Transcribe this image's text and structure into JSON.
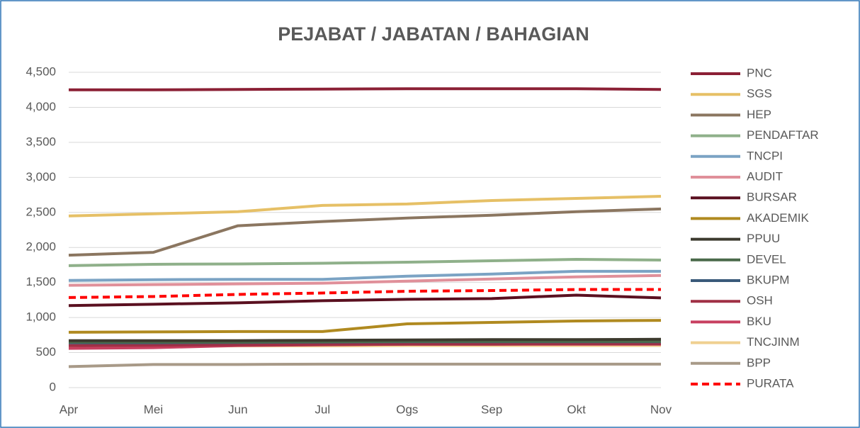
{
  "chart_data": {
    "type": "line",
    "title": "PEJABAT / JABATAN / BAHAGIAN",
    "categories": [
      "Apr",
      "Mei",
      "Jun",
      "Jul",
      "Ogs",
      "Sep",
      "Okt",
      "Nov"
    ],
    "ylim": [
      0,
      4500
    ],
    "yticks": [
      0,
      500,
      {
        "value": 1000,
        "label": "1,000"
      },
      {
        "value": 1500,
        "label": "1,500"
      },
      {
        "value": 2000,
        "label": "2,000"
      },
      {
        "value": 2500,
        "label": "2,500"
      },
      {
        "value": 3000,
        "label": "3,000"
      },
      {
        "value": 3500,
        "label": "3,500"
      },
      {
        "value": 4000,
        "label": "4,000"
      },
      {
        "value": 4500,
        "label": "4,500"
      }
    ],
    "grid": true,
    "legend": "right",
    "series": [
      {
        "name": "PNC",
        "color": "#8b2035",
        "values": [
          4250,
          4250,
          4255,
          4260,
          4265,
          4265,
          4265,
          4255
        ]
      },
      {
        "name": "SGS",
        "color": "#e6c066",
        "values": [
          2450,
          2480,
          2510,
          2600,
          2620,
          2670,
          2700,
          2730
        ]
      },
      {
        "name": "HEP",
        "color": "#8b7660",
        "values": [
          1890,
          1930,
          2310,
          2370,
          2420,
          2460,
          2510,
          2550
        ]
      },
      {
        "name": "PENDAFTAR",
        "color": "#8fb08a",
        "values": [
          1740,
          1760,
          1765,
          1775,
          1790,
          1810,
          1830,
          1820
        ]
      },
      {
        "name": "TNCPI",
        "color": "#7ba3c4",
        "values": [
          1530,
          1540,
          1545,
          1545,
          1590,
          1620,
          1660,
          1660
        ]
      },
      {
        "name": "AUDIT",
        "color": "#e0909a",
        "values": [
          1460,
          1470,
          1480,
          1490,
          1520,
          1550,
          1580,
          1600
        ]
      },
      {
        "name": "BURSAR",
        "color": "#5a1020",
        "values": [
          1170,
          1190,
          1210,
          1240,
          1260,
          1270,
          1320,
          1280
        ]
      },
      {
        "name": "AKADEMIK",
        "color": "#b08a20",
        "values": [
          790,
          795,
          800,
          800,
          910,
          930,
          950,
          960
        ]
      },
      {
        "name": "PPUU",
        "color": "#3c3a2e",
        "values": [
          670,
          670,
          670,
          675,
          680,
          685,
          685,
          690
        ]
      },
      {
        "name": "DEVEL",
        "color": "#4a6a4a",
        "values": [
          650,
          650,
          650,
          655,
          660,
          660,
          660,
          660
        ]
      },
      {
        "name": "BKUPM",
        "color": "#3a5a7a",
        "values": [
          640,
          640,
          645,
          650,
          655,
          655,
          655,
          655
        ]
      },
      {
        "name": "OSH",
        "color": "#a03045",
        "values": [
          600,
          605,
          610,
          615,
          620,
          620,
          625,
          625
        ]
      },
      {
        "name": "BKU",
        "color": "#c84060",
        "values": [
          560,
          570,
          600,
          610,
          620,
          620,
          620,
          620
        ]
      },
      {
        "name": "TNCJINM",
        "color": "#f0d090",
        "values": [
          590,
          590,
          595,
          595,
          600,
          600,
          600,
          600
        ]
      },
      {
        "name": "BPP",
        "color": "#a89a88",
        "values": [
          300,
          330,
          330,
          335,
          335,
          335,
          335,
          335
        ]
      },
      {
        "name": "PURATA",
        "color": "#ff0000",
        "dash": true,
        "values": [
          1285,
          1300,
          1330,
          1350,
          1375,
          1385,
          1400,
          1400
        ]
      }
    ]
  }
}
